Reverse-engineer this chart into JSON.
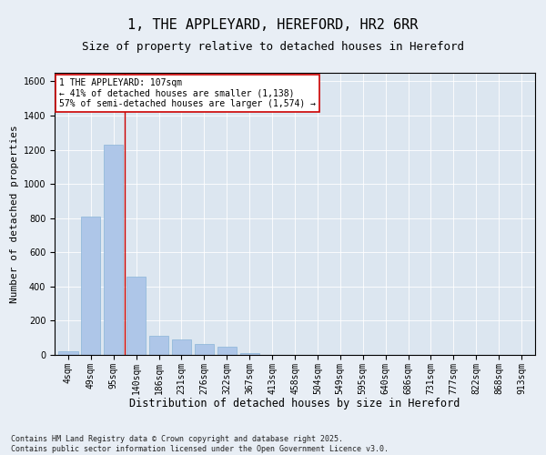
{
  "title": "1, THE APPLEYARD, HEREFORD, HR2 6RR",
  "subtitle": "Size of property relative to detached houses in Hereford",
  "xlabel": "Distribution of detached houses by size in Hereford",
  "ylabel": "Number of detached properties",
  "categories": [
    "4sqm",
    "49sqm",
    "95sqm",
    "140sqm",
    "186sqm",
    "231sqm",
    "276sqm",
    "322sqm",
    "367sqm",
    "413sqm",
    "458sqm",
    "504sqm",
    "549sqm",
    "595sqm",
    "640sqm",
    "686sqm",
    "731sqm",
    "777sqm",
    "822sqm",
    "868sqm",
    "913sqm"
  ],
  "values": [
    20,
    810,
    1230,
    460,
    110,
    90,
    65,
    50,
    10,
    0,
    0,
    0,
    0,
    0,
    0,
    0,
    0,
    0,
    0,
    0,
    0
  ],
  "bar_color": "#aec6e8",
  "bar_edge_color": "#8ab4d8",
  "vline_x": 2.5,
  "vline_color": "#cc0000",
  "annotation_text": "1 THE APPLEYARD: 107sqm\n← 41% of detached houses are smaller (1,138)\n57% of semi-detached houses are larger (1,574) →",
  "annotation_box_color": "#ffffff",
  "annotation_box_edge": "#cc0000",
  "ylim": [
    0,
    1650
  ],
  "yticks": [
    0,
    200,
    400,
    600,
    800,
    1000,
    1200,
    1400,
    1600
  ],
  "background_color": "#e8eef5",
  "plot_bg_color": "#dce6f0",
  "footer": "Contains HM Land Registry data © Crown copyright and database right 2025.\nContains public sector information licensed under the Open Government Licence v3.0.",
  "title_fontsize": 11,
  "subtitle_fontsize": 9,
  "xlabel_fontsize": 8.5,
  "ylabel_fontsize": 8,
  "tick_fontsize": 7,
  "annotation_fontsize": 7,
  "footer_fontsize": 6
}
